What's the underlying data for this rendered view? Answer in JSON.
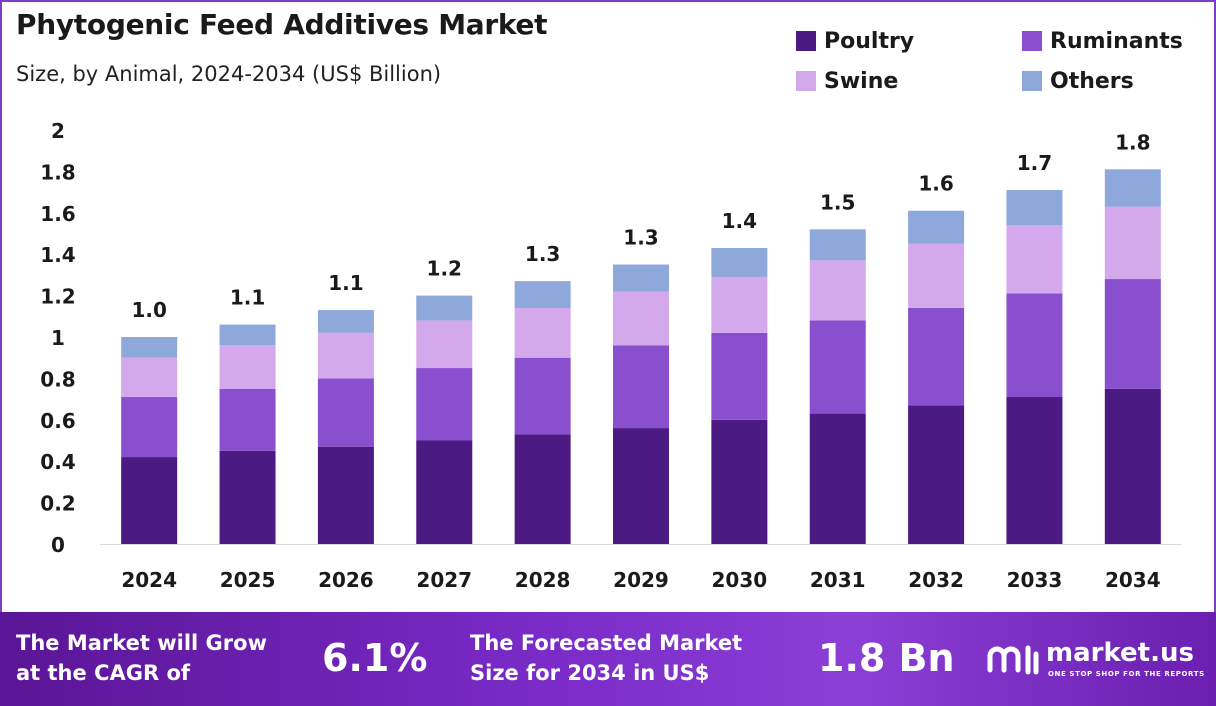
{
  "header": {
    "title": "Phytogenic Feed Additives Market",
    "subtitle": "Size, by Animal, 2024-2034 (US$ Billion)"
  },
  "colors": {
    "poultry": "#4b1a82",
    "ruminants": "#8a4fcf",
    "swine": "#d4a9ec",
    "others": "#8fa8dc",
    "frame": "#7b3fc4"
  },
  "legend": [
    {
      "label": "Poultry",
      "color": "#4b1a82"
    },
    {
      "label": "Ruminants",
      "color": "#8a4fcf"
    },
    {
      "label": "Swine",
      "color": "#d4a9ec"
    },
    {
      "label": "Others",
      "color": "#8fa8dc"
    }
  ],
  "chart_data": {
    "type": "bar",
    "stacked": true,
    "categories": [
      "2024",
      "2025",
      "2026",
      "2027",
      "2028",
      "2029",
      "2030",
      "2031",
      "2032",
      "2033",
      "2034"
    ],
    "series": [
      {
        "name": "Poultry",
        "values": [
          0.42,
          0.45,
          0.47,
          0.5,
          0.53,
          0.56,
          0.6,
          0.63,
          0.67,
          0.71,
          0.75
        ]
      },
      {
        "name": "Ruminants",
        "values": [
          0.29,
          0.3,
          0.33,
          0.35,
          0.37,
          0.4,
          0.42,
          0.45,
          0.47,
          0.5,
          0.53
        ]
      },
      {
        "name": "Swine",
        "values": [
          0.19,
          0.21,
          0.22,
          0.23,
          0.24,
          0.26,
          0.27,
          0.29,
          0.31,
          0.33,
          0.35
        ]
      },
      {
        "name": "Others",
        "values": [
          0.1,
          0.1,
          0.11,
          0.12,
          0.13,
          0.13,
          0.14,
          0.15,
          0.16,
          0.17,
          0.18
        ]
      }
    ],
    "totals_labels": [
      "1.0",
      "1.1",
      "1.1",
      "1.2",
      "1.3",
      "1.3",
      "1.4",
      "1.5",
      "1.6",
      "1.7",
      "1.8"
    ],
    "ylim": [
      0,
      2
    ],
    "yticks": [
      "0",
      "0.2",
      "0.4",
      "0.6",
      "0.8",
      "1",
      "1.2",
      "1.4",
      "1.6",
      "1.8",
      "2"
    ],
    "grid": false,
    "legend_position": "top-right"
  },
  "footer": {
    "cagr_text": "The Market will Grow\nat the CAGR of",
    "cagr_value": "6.1%",
    "forecast_text": "The Forecasted Market\nSize for 2034 in US$",
    "forecast_value": "1.8 Bn",
    "brand_name": "market.us",
    "brand_tagline": "ONE STOP SHOP FOR THE REPORTS"
  }
}
